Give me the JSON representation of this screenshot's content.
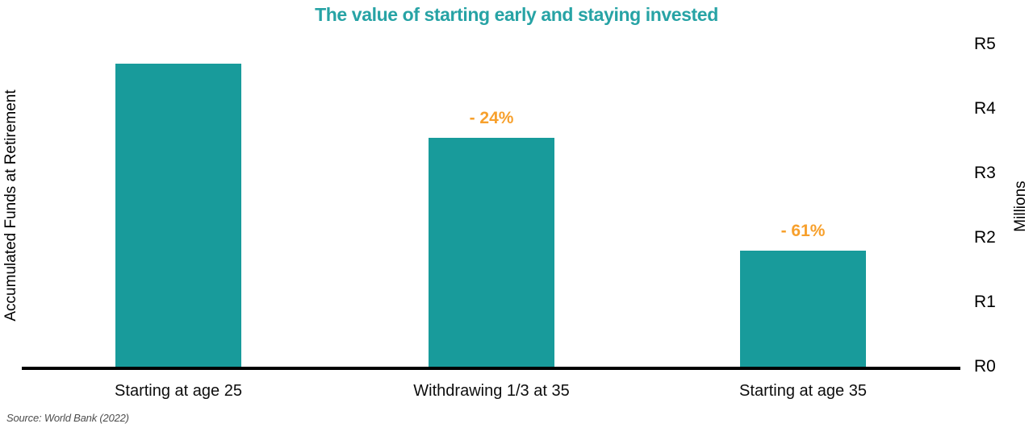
{
  "title": "The value of starting early and staying invested",
  "left_axis_label": "Accumulated Funds at Retirement",
  "right_axis": {
    "ticks": [
      "R5",
      "R4",
      "R3",
      "R2",
      "R1",
      "R0"
    ],
    "unit_label": "Millions"
  },
  "source_note": "Source: World Bank (2022)",
  "colors": {
    "bar": "#189B9B",
    "title": "#27A3A5",
    "annotation": "#F7A02C",
    "axis_line": "#000000",
    "source_text": "#4D4D4D"
  },
  "chart_data": {
    "type": "bar",
    "title": "The value of starting early and staying invested",
    "categories": [
      "Starting at age 25",
      "Withdrawing 1/3 at 35",
      "Starting at age 35"
    ],
    "values": [
      4.7,
      3.55,
      1.8
    ],
    "annotations": [
      "",
      "- 24%",
      "- 61%"
    ],
    "ylabel": "Accumulated Funds at Retirement",
    "ylabel_right": "Millions",
    "ytick_labels": [
      "R0",
      "R1",
      "R2",
      "R3",
      "R4",
      "R5"
    ],
    "ylim": [
      0,
      5
    ],
    "grid": false,
    "legend": false,
    "source": "Source: World Bank (2022)"
  }
}
